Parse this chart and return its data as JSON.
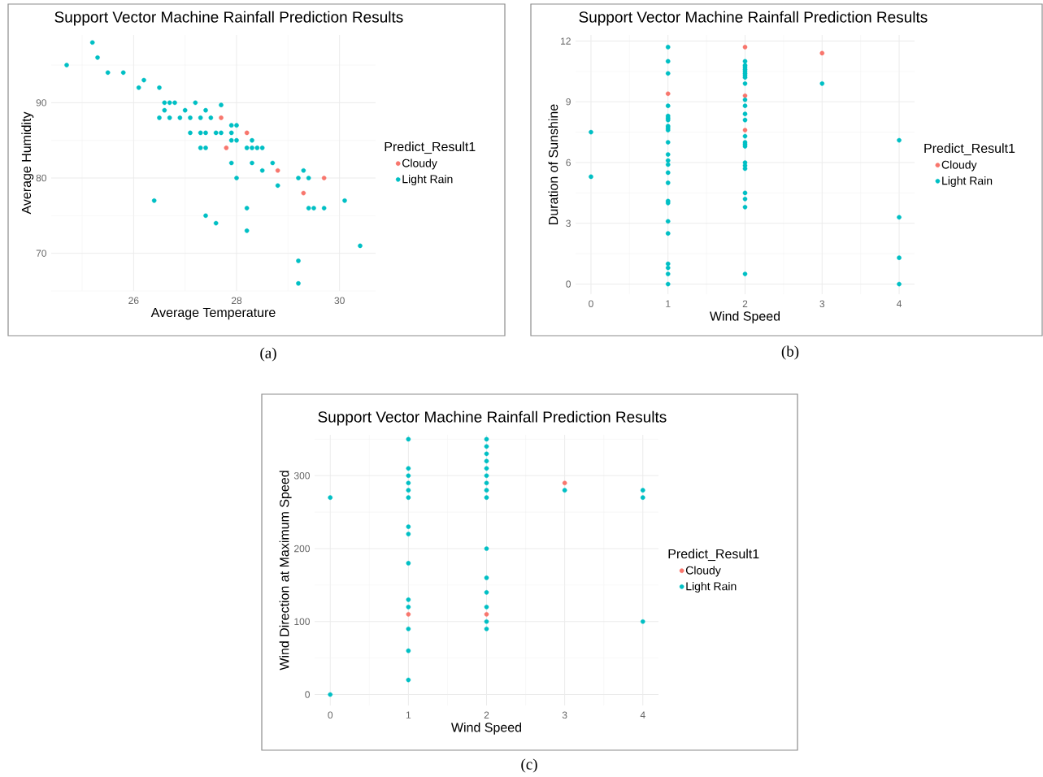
{
  "chart_data": [
    {
      "type": "scatter",
      "title": "Support Vector Machine Rainfall Prediction Results",
      "xlabel": "Average Temperature",
      "ylabel": "Average Humidity",
      "legend_title": "Predict_Result1",
      "xlim": [
        24.4,
        30.7
      ],
      "ylim": [
        65,
        99
      ],
      "xticks": [
        26,
        28,
        30
      ],
      "yticks": [
        70,
        80,
        90
      ],
      "grid": true,
      "legend": "right",
      "marker": "circle",
      "annotations": [
        "(a)"
      ],
      "series": [
        {
          "name": "Cloudy",
          "color": "#f8766d",
          "x": [
            27.7,
            28.2,
            27.8,
            28.8,
            29.7,
            29.3
          ],
          "values": [
            88,
            86,
            84,
            81,
            80,
            78
          ]
        },
        {
          "name": "Light Rain",
          "color": "#00bfc4",
          "x": [
            24.7,
            25.2,
            25.3,
            25.5,
            25.8,
            26.1,
            26.2,
            26.5,
            26.6,
            26.7,
            26.8,
            26.6,
            26.5,
            26.7,
            26.9,
            27.0,
            27.1,
            27.2,
            27.3,
            27.4,
            27.5,
            27.7,
            27.1,
            27.3,
            27.4,
            27.6,
            27.7,
            27.3,
            27.4,
            27.9,
            28.0,
            27.9,
            27.9,
            28.0,
            28.2,
            28.3,
            28.3,
            28.4,
            28.5,
            27.9,
            28.3,
            28.5,
            28.7,
            28.0,
            28.8,
            29.2,
            29.3,
            29.4,
            29.4,
            29.5,
            29.7,
            30.1,
            26.4,
            27.4,
            27.6,
            28.2,
            28.2,
            30.4,
            29.2,
            29.2
          ],
          "values": [
            95,
            98,
            96,
            94,
            94,
            92,
            93,
            92,
            90,
            90,
            90,
            89,
            88,
            88,
            88,
            89,
            88,
            90,
            88,
            89,
            88,
            89.7,
            86,
            86,
            86,
            86,
            86,
            84,
            84,
            87,
            87,
            86,
            85,
            85,
            84,
            85,
            84,
            84,
            84,
            82,
            82,
            81,
            82,
            80,
            79,
            80,
            81,
            80,
            76,
            76,
            76,
            77,
            77,
            75,
            74,
            76,
            73,
            71,
            69,
            66
          ]
        }
      ]
    },
    {
      "type": "scatter",
      "title": "Support Vector Machine Rainfall Prediction Results",
      "xlabel": "Wind Speed",
      "ylabel": "Duration of Sunshine",
      "legend_title": "Predict_Result1",
      "xlim": [
        -0.2,
        4.2
      ],
      "ylim": [
        -0.5,
        12.3
      ],
      "xticks": [
        0,
        1,
        2,
        3,
        4
      ],
      "yticks": [
        0,
        3,
        6,
        9,
        12
      ],
      "grid": true,
      "legend": "right",
      "marker": "circle",
      "annotations": [
        "(b)"
      ],
      "series": [
        {
          "name": "Cloudy",
          "color": "#f8766d",
          "x": [
            1,
            2,
            2,
            2,
            3
          ],
          "values": [
            9.4,
            11.7,
            9.3,
            7.6,
            11.4
          ]
        },
        {
          "name": "Light Rain",
          "color": "#00bfc4",
          "x": [
            0,
            0,
            1,
            1,
            1,
            1,
            1,
            1,
            1,
            1,
            1,
            1,
            1,
            1,
            1,
            1,
            1,
            1,
            1,
            1,
            1,
            1,
            1,
            1,
            1,
            1,
            2,
            2,
            2,
            2,
            2,
            2,
            2,
            2,
            2,
            2,
            2,
            2,
            2,
            2,
            2,
            2,
            2,
            2,
            2,
            2,
            2,
            2,
            2,
            2,
            3,
            4,
            4,
            4,
            4
          ],
          "values": [
            7.5,
            5.3,
            11.7,
            11.0,
            10.4,
            8.8,
            8.3,
            8.2,
            8.1,
            7.8,
            7.7,
            7.6,
            7.0,
            6.4,
            6.1,
            5.9,
            5.5,
            5.0,
            4.1,
            4.0,
            3.1,
            2.5,
            1.0,
            0.8,
            0.5,
            0,
            11.0,
            10.8,
            10.7,
            10.6,
            10.5,
            10.4,
            10.3,
            10.2,
            9.9,
            9.1,
            8.8,
            8.4,
            8.1,
            7.3,
            7.0,
            6.9,
            6.8,
            6.0,
            5.85,
            5.7,
            4.5,
            4.2,
            3.8,
            0.5,
            9.9,
            7.1,
            3.3,
            1.3,
            0
          ]
        }
      ]
    },
    {
      "type": "scatter",
      "title": "Support Vector Machine Rainfall Prediction Results",
      "xlabel": "Wind Speed",
      "ylabel": "Wind Direction at Maximum Speed",
      "legend_title": "Predict_Result1",
      "xlim": [
        -0.2,
        4.2
      ],
      "ylim": [
        -15,
        356
      ],
      "xticks": [
        0,
        1,
        2,
        3,
        4
      ],
      "yticks": [
        0,
        100,
        200,
        300
      ],
      "grid": true,
      "legend": "right",
      "marker": "circle",
      "annotations": [
        "(c)"
      ],
      "series": [
        {
          "name": "Cloudy",
          "color": "#f8766d",
          "x": [
            1,
            2,
            3
          ],
          "values": [
            110,
            110,
            290
          ]
        },
        {
          "name": "Light Rain",
          "color": "#00bfc4",
          "x": [
            0,
            0,
            1,
            1,
            1,
            1,
            1,
            1,
            1,
            1,
            1,
            1,
            1,
            1,
            1,
            1,
            2,
            2,
            2,
            2,
            2,
            2,
            2,
            2,
            2,
            2,
            2,
            2,
            2,
            2,
            2,
            3,
            4,
            4,
            4
          ],
          "values": [
            270,
            0,
            350,
            310,
            300,
            290,
            280,
            270,
            230,
            220,
            180,
            130,
            120,
            90,
            60,
            20,
            350,
            340,
            330,
            320,
            310,
            300,
            290,
            280,
            270,
            200,
            160,
            140,
            120,
            100,
            90,
            280,
            280,
            270,
            100
          ]
        }
      ]
    }
  ]
}
